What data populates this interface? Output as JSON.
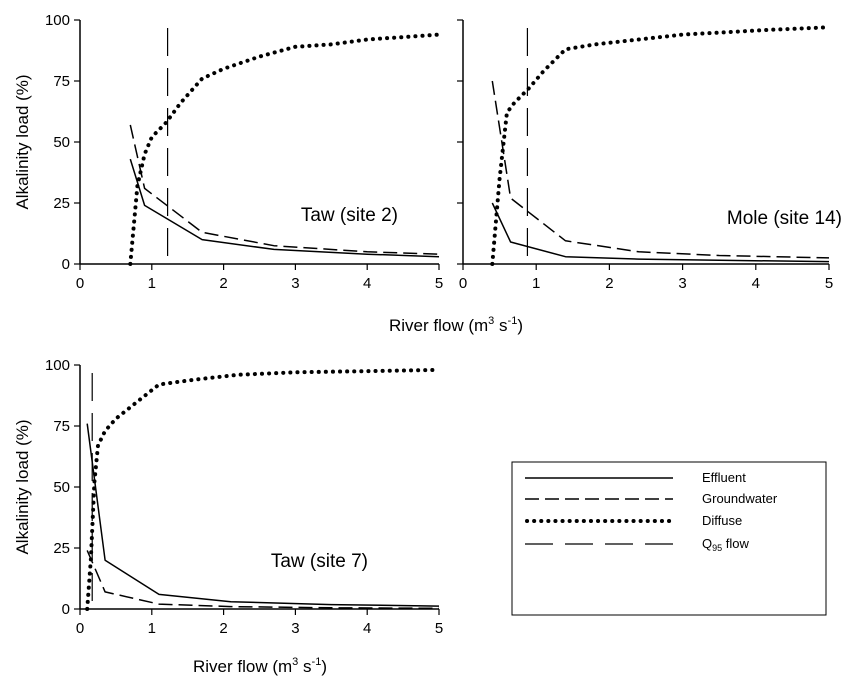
{
  "chart_data": [
    {
      "type": "line",
      "panel_label": "Taw (site 2)",
      "ylabel": "Alkalinity load (%)",
      "xlabel": "",
      "xlim": [
        0,
        5
      ],
      "ylim": [
        0,
        100
      ],
      "xticks": [
        "0",
        "1",
        "2",
        "3",
        "4",
        "5"
      ],
      "yticks": [
        "0",
        "25",
        "50",
        "75",
        "100"
      ],
      "q95_flow": 1.22,
      "series": [
        {
          "name": "Effluent",
          "style": "solid",
          "x": [
            0.7,
            0.9,
            1.7,
            2.7,
            4.0,
            5.0
          ],
          "y": [
            43,
            24,
            10,
            6,
            4,
            3
          ]
        },
        {
          "name": "Groundwater",
          "style": "dashed",
          "x": [
            0.7,
            0.9,
            1.7,
            2.7,
            4.0,
            5.0
          ],
          "y": [
            57,
            31,
            13,
            7.5,
            5,
            4
          ]
        },
        {
          "name": "Diffuse",
          "style": "dotted",
          "x": [
            0.7,
            0.8,
            0.9,
            1.0,
            1.2,
            1.4,
            1.7,
            2.0,
            2.5,
            3.0,
            3.5,
            4.0,
            4.5,
            5.0
          ],
          "y": [
            0,
            32,
            45,
            52,
            58,
            66,
            76,
            80,
            85,
            89,
            90,
            92,
            93,
            94
          ]
        }
      ]
    },
    {
      "type": "line",
      "panel_label": "Mole (site 14)",
      "ylabel": "",
      "xlabel": "River flow (m³ s⁻¹)",
      "xlim": [
        0,
        5
      ],
      "ylim": [
        0,
        100
      ],
      "xticks": [
        "0",
        "1",
        "2",
        "3",
        "4",
        "5"
      ],
      "yticks": [],
      "q95_flow": 0.88,
      "series": [
        {
          "name": "Effluent",
          "style": "solid",
          "x": [
            0.4,
            0.65,
            1.4,
            2.4,
            3.5,
            5.0
          ],
          "y": [
            25,
            9,
            3,
            2,
            1.5,
            1
          ]
        },
        {
          "name": "Groundwater",
          "style": "dashed",
          "x": [
            0.4,
            0.65,
            1.4,
            2.4,
            3.5,
            5.0
          ],
          "y": [
            75,
            27,
            9.5,
            5,
            3.5,
            2.5
          ]
        },
        {
          "name": "Diffuse",
          "style": "dotted",
          "x": [
            0.4,
            0.5,
            0.6,
            0.7,
            0.9,
            1.1,
            1.4,
            1.8,
            2.4,
            3.0,
            3.6,
            4.2,
            5.0
          ],
          "y": [
            0,
            35,
            62,
            66,
            72,
            79,
            88,
            90,
            92,
            94,
            95,
            96,
            97
          ]
        }
      ]
    },
    {
      "type": "line",
      "panel_label": "Taw (site 7)",
      "ylabel": "Alkalinity load (%)",
      "xlabel": "River flow (m³ s⁻¹)",
      "xlim": [
        0,
        5
      ],
      "ylim": [
        0,
        100
      ],
      "xticks": [
        "0",
        "1",
        "2",
        "3",
        "4",
        "5"
      ],
      "yticks": [
        "0",
        "25",
        "50",
        "75",
        "100"
      ],
      "q95_flow": 0.17,
      "series": [
        {
          "name": "Effluent",
          "style": "solid",
          "x": [
            0.1,
            0.35,
            1.1,
            2.1,
            3.5,
            5.0
          ],
          "y": [
            76,
            20,
            6,
            3,
            1.8,
            1.2
          ]
        },
        {
          "name": "Groundwater",
          "style": "dashed",
          "x": [
            0.1,
            0.35,
            1.1,
            2.1,
            3.5,
            5.0
          ],
          "y": [
            24,
            7,
            2,
            1,
            0.5,
            0.3
          ]
        },
        {
          "name": "Diffuse",
          "style": "dotted",
          "x": [
            0.1,
            0.15,
            0.2,
            0.25,
            0.35,
            0.5,
            0.8,
            1.1,
            1.6,
            2.2,
            3.0,
            4.0,
            5.0
          ],
          "y": [
            0,
            20,
            52,
            67,
            73,
            78,
            85,
            92,
            94,
            96,
            97,
            97.5,
            98
          ]
        }
      ]
    }
  ],
  "legend": {
    "entries": [
      {
        "label": "Effluent",
        "style": "solid"
      },
      {
        "label": "Groundwater",
        "style": "dashed"
      },
      {
        "label": "Diffuse",
        "style": "dotted"
      },
      {
        "label": "Q",
        "subscript": "95",
        "suffix": " flow",
        "style": "longdash"
      }
    ]
  },
  "axis_titles": {
    "x_top": {
      "main": "River flow (m",
      "sup1": "3",
      "mid": " s",
      "sup2": "-1",
      "close": ")"
    },
    "x_bottom": {
      "main": "River flow (m",
      "sup1": "3",
      "mid": " s",
      "sup2": "-1",
      "close": ")"
    }
  }
}
